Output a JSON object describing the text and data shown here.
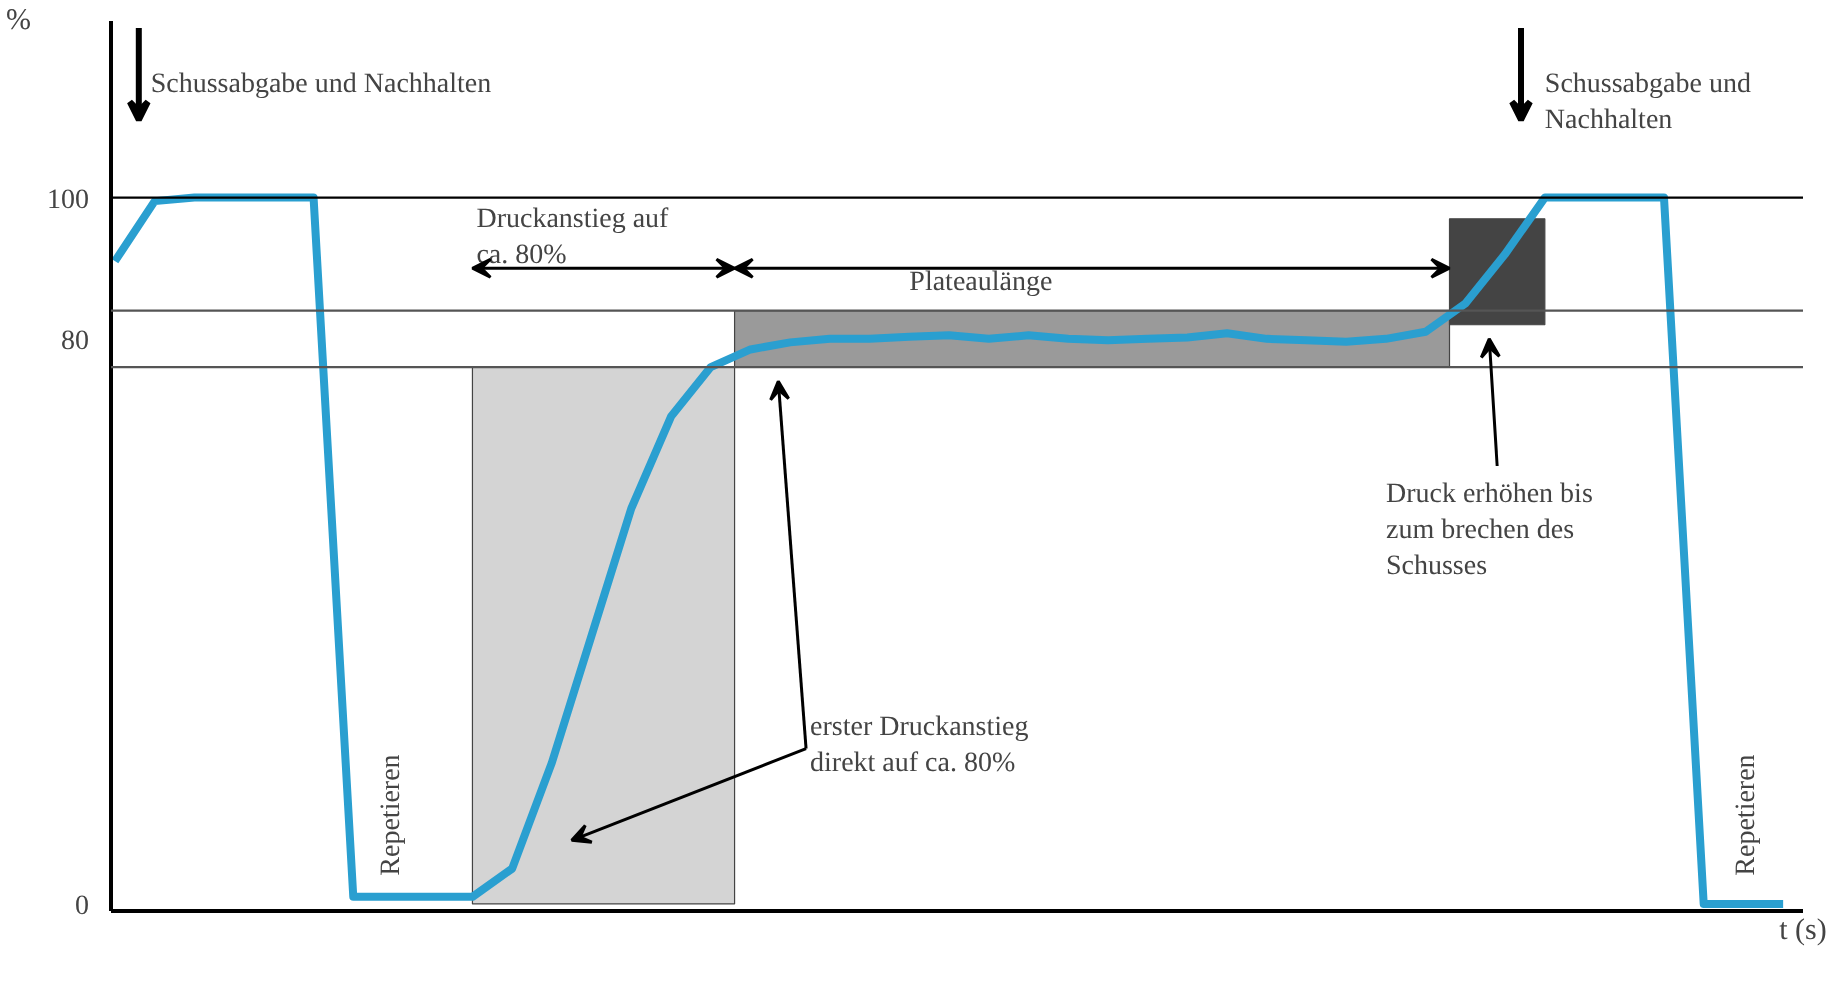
{
  "chart_data": {
    "type": "line",
    "xlabel": "t (s)",
    "ylabel": "%",
    "categories": [
      null,
      null,
      null,
      null,
      null,
      null,
      null,
      null,
      null,
      null,
      null,
      null,
      null,
      null,
      null,
      null,
      null,
      null,
      null,
      null,
      null,
      null,
      null,
      null,
      null,
      null,
      null,
      null,
      null,
      null,
      null,
      null,
      null,
      null,
      null,
      null,
      null,
      null,
      null,
      null,
      null,
      null,
      null
    ],
    "series": [
      {
        "color": "#2a9fd0",
        "values": [
          91,
          99.5,
          100,
          100,
          100,
          100,
          1,
          1,
          1,
          1,
          5,
          20,
          38,
          56,
          69,
          76,
          78.5,
          79.5,
          80,
          80,
          80.3,
          80.5,
          80,
          80.5,
          80,
          79.8,
          80,
          80.2,
          80.8,
          80,
          79.8,
          79.6,
          80,
          81,
          85,
          92,
          100,
          100,
          100,
          100,
          0,
          0,
          0
        ]
      }
    ],
    "ylim": [
      -1,
      125
    ],
    "yticks": [
      0,
      80,
      100
    ],
    "grid": false,
    "marker": "none",
    "line_style": "solid",
    "bands": [
      {
        "axis": "y",
        "from": 76,
        "to": 84,
        "color": "#9a9a9a"
      },
      {
        "axis": "y",
        "from": 82,
        "to": 97,
        "color": "#444444"
      }
    ],
    "ref_lines": [
      {
        "axis": "y",
        "value": 100,
        "color": "#000000"
      },
      {
        "axis": "y",
        "value": 84,
        "color": "#555555"
      },
      {
        "axis": "y",
        "value": 76,
        "color": "#555555"
      }
    ],
    "annotations": [
      "Schussabgabe und Nachhalten",
      "Druckanstieg auf\nca. 80%",
      "Plateaulänge",
      "Schussabgabe und\nNachhalten",
      "Druck erhöhen bis\nzum brechen des\nSchusses",
      "erster Druckanstieg\ndirekt auf ca. 80%",
      "Repetieren",
      "Repetieren"
    ]
  }
}
